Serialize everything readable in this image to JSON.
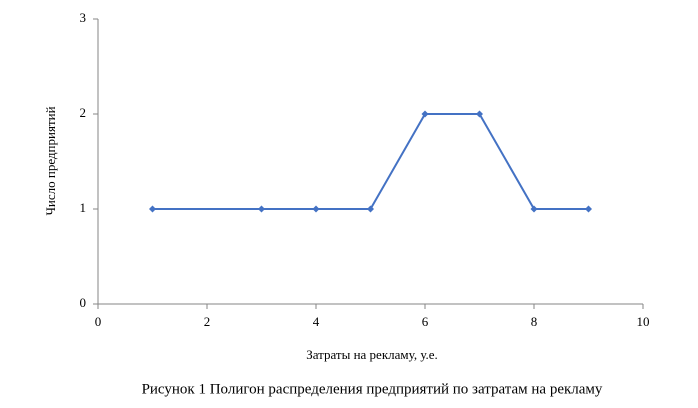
{
  "chart_data": {
    "type": "line",
    "caption": "Рисунок 1 Полигон распределения предприятий по затратам на рекламу",
    "x_label": "Затраты на рекламу, у.е.",
    "y_label": "Число предприятий",
    "x": [
      1,
      3,
      4,
      5,
      6,
      7,
      8,
      9
    ],
    "series": [
      {
        "color": "#4472c4",
        "values": [
          1,
          1,
          1,
          1,
          2,
          2,
          1,
          1
        ]
      }
    ],
    "xlim": [
      0,
      10
    ],
    "xticks": [
      0,
      2,
      4,
      6,
      8,
      10
    ],
    "ylim": [
      0,
      3
    ],
    "yticks": [
      0,
      1,
      2,
      3
    ],
    "grid": false
  }
}
